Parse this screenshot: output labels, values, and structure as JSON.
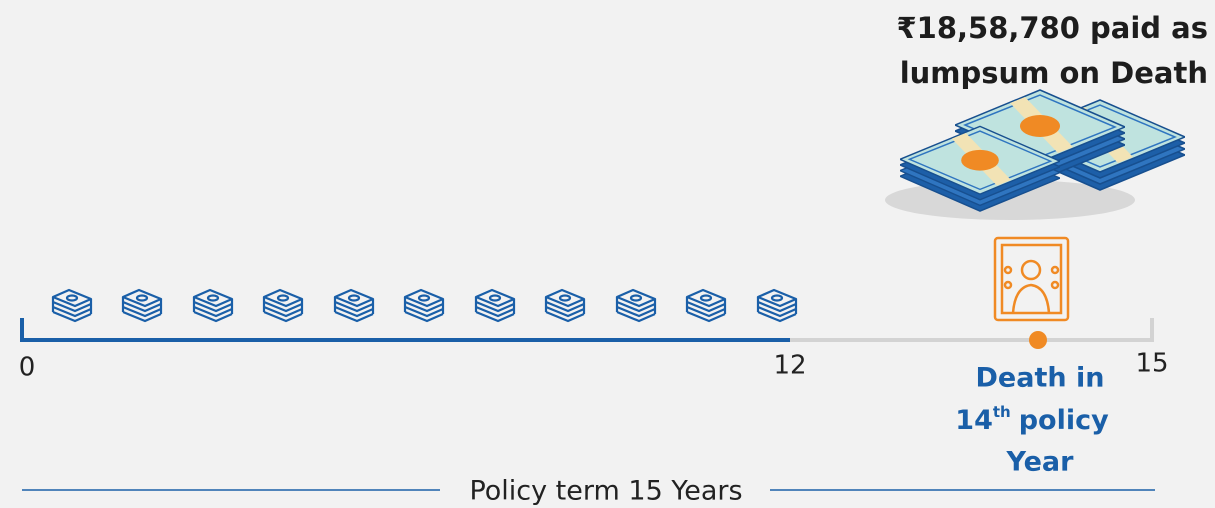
{
  "title": {
    "lines": [
      "₹18,58,780 paid as",
      "lumpsum on Death"
    ]
  },
  "timeline": {
    "labels": [
      "0",
      "12",
      "15"
    ]
  },
  "death_note": {
    "line1": "Death in",
    "ordinal_number": "14",
    "ordinal_suffix": "th",
    "line2_rest": "policy",
    "line3": "Year"
  },
  "footer": "Policy term 15 Years"
}
